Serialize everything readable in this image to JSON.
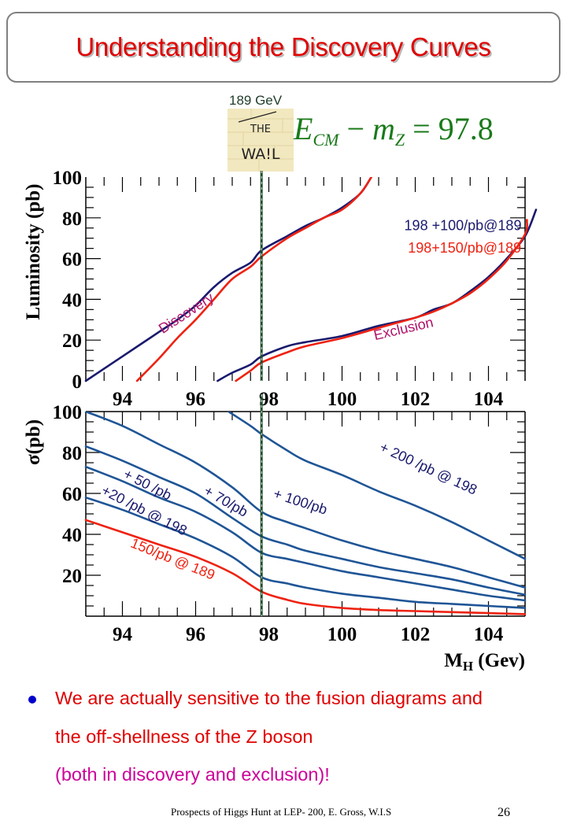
{
  "slide": {
    "title": "Understanding the Discovery Curves",
    "wall_label": "189 GeV",
    "wall_image_text": [
      "THE",
      "WA!L"
    ],
    "formula": {
      "E": "E",
      "E_sub": "CM",
      "minus": " − ",
      "m": "m",
      "m_sub": "Z",
      "rhs": " = 97.8"
    },
    "bullets": [
      {
        "lines": [
          "We are actually sensitive to the fusion diagrams and",
          "the off-shellness of the Z boson"
        ]
      },
      {
        "lines": [
          "(both in discovery and exclusion)!"
        ]
      }
    ],
    "footer": "Prospects of Higgs Hunt at LEP-   200, E. Gross, W.I.S",
    "page_number": "26"
  },
  "colors": {
    "title": "#e00000",
    "navy": "#1a1a6e",
    "red": "#ee2211",
    "steel_blue": "#1f5596",
    "magenta_label": "#b0106a",
    "green_line": "#1f4d2a",
    "bullet_red": "#e00000",
    "bullet_magenta": "#cc0099"
  },
  "chart_data": [
    {
      "type": "line",
      "title": "",
      "xlabel": "",
      "ylabel": "Luminosity (pb)",
      "xlim": [
        93,
        105
      ],
      "ylim": [
        0,
        100
      ],
      "xticks": [
        94,
        96,
        98,
        100,
        102,
        104
      ],
      "yticks": [
        0,
        20,
        40,
        60,
        80,
        100
      ],
      "vertical_line_x": 97.8,
      "annotations": [
        {
          "text": "Discovery",
          "x": 95.1,
          "y": 23,
          "color": "magenta_label",
          "rotation_deg": -33
        },
        {
          "text": "Exclusion",
          "x": 100.9,
          "y": 20,
          "color": "magenta_label",
          "rotation_deg": -13
        },
        {
          "text": "198 +100/pb@189",
          "x": 101.7,
          "y": 74,
          "color": "navy"
        },
        {
          "text": "198+150/pb@189",
          "x": 101.8,
          "y": 63,
          "color": "red"
        }
      ],
      "series": [
        {
          "name": "Discovery 198 +100/pb@189",
          "color": "navy",
          "x": [
            93.0,
            93.5,
            94.0,
            94.5,
            95.0,
            95.5,
            96.0,
            96.5,
            97.0,
            97.5,
            97.8,
            98.5,
            99.0,
            99.5,
            100.0,
            100.5,
            100.8
          ],
          "y": [
            0,
            6,
            12,
            18,
            24,
            30,
            37,
            46,
            53,
            58,
            64,
            71,
            76,
            80,
            85,
            92,
            100
          ]
        },
        {
          "name": "Discovery 198+150/pb@189",
          "color": "red",
          "x": [
            94.4,
            95.0,
            95.5,
            96.0,
            96.5,
            97.0,
            97.5,
            97.8,
            98.5,
            99.0,
            99.5,
            100.0,
            100.5,
            100.8
          ],
          "y": [
            0,
            11,
            21,
            30,
            40,
            50,
            56,
            61,
            70,
            75,
            80,
            84,
            92,
            100
          ]
        },
        {
          "name": "Exclusion 198 +100/pb@189",
          "color": "navy",
          "x": [
            96.6,
            97.0,
            97.5,
            97.8,
            98.5,
            99.0,
            100.0,
            101.0,
            102.0,
            102.5,
            103.0,
            103.5,
            104.0,
            104.5,
            105.0,
            105.3
          ],
          "y": [
            0,
            4,
            8,
            12,
            17,
            19,
            22,
            27,
            31,
            35,
            38,
            44,
            51,
            60,
            71,
            84
          ]
        },
        {
          "name": "Exclusion 198+150/pb@189",
          "color": "red",
          "x": [
            97.1,
            97.5,
            97.8,
            98.5,
            99.0,
            100.0,
            101.0,
            102.0,
            102.5,
            103.0,
            103.5,
            104.0,
            104.5,
            105.0,
            105.05
          ],
          "y": [
            0,
            5,
            9,
            14,
            17,
            21,
            26,
            31,
            34,
            38,
            43,
            50,
            59,
            72,
            79
          ]
        }
      ]
    },
    {
      "type": "line",
      "title": "",
      "xlabel": "M_H (Gev)",
      "ylabel": "σ(pb)",
      "xlim": [
        93,
        105
      ],
      "ylim": [
        0,
        100
      ],
      "xticks": [
        94,
        96,
        98,
        100,
        102,
        104
      ],
      "yticks": [
        20,
        40,
        60,
        80,
        100
      ],
      "vertical_line_x": 97.8,
      "annotations": [
        {
          "text": "+ 200 /pb @ 198",
          "x": 101.0,
          "y": 81,
          "color": "navy",
          "rotation_deg": 25
        },
        {
          "text": "+  100/pb",
          "x": 98.1,
          "y": 58,
          "color": "navy",
          "rotation_deg": 18
        },
        {
          "text": "+  70/pb",
          "x": 96.2,
          "y": 60,
          "color": "navy",
          "rotation_deg": 30
        },
        {
          "text": "+ 50 /pb",
          "x": 94.0,
          "y": 68,
          "color": "navy",
          "rotation_deg": 27
        },
        {
          "text": "+20 /pb @ 198",
          "x": 93.4,
          "y": 60,
          "color": "navy",
          "rotation_deg": 27
        },
        {
          "text": "150/pb @ 189",
          "x": 94.2,
          "y": 34,
          "color": "red",
          "rotation_deg": 22
        }
      ],
      "series": [
        {
          "name": "+200 /pb @ 198",
          "color": "steel_blue",
          "x": [
            96.9,
            97.5,
            97.8,
            98.5,
            99.0,
            100.0,
            101.0,
            102.0,
            103.0,
            104.0,
            105.0
          ],
          "y": [
            100,
            93,
            89,
            81,
            76,
            69,
            61,
            54,
            46,
            37,
            28
          ]
        },
        {
          "name": "+100/pb",
          "color": "steel_blue",
          "x": [
            93.0,
            94.0,
            95.0,
            96.0,
            97.0,
            97.8,
            98.5,
            99.0,
            100.0,
            101.0,
            102.0,
            103.0,
            104.0,
            105.0
          ],
          "y": [
            100,
            93,
            84,
            75,
            63,
            51,
            46,
            43,
            37,
            32,
            28,
            24,
            19,
            14
          ]
        },
        {
          "name": "+70/pb",
          "color": "steel_blue",
          "x": [
            93.0,
            94.0,
            95.0,
            96.0,
            97.0,
            97.8,
            98.5,
            99.0,
            100.0,
            101.0,
            102.0,
            103.0,
            104.0,
            105.0
          ],
          "y": [
            83,
            76,
            68,
            60,
            48,
            39,
            35,
            32,
            28,
            24,
            21,
            18,
            14,
            10.5
          ]
        },
        {
          "name": "+50/pb",
          "color": "steel_blue",
          "x": [
            93.0,
            94.0,
            95.0,
            96.0,
            97.0,
            97.8,
            98.5,
            99.0,
            100.0,
            101.0,
            102.0,
            103.0,
            104.0,
            105.0
          ],
          "y": [
            73,
            66,
            58,
            51,
            41,
            31,
            28,
            26,
            22,
            19,
            16,
            13,
            10,
            7.7
          ]
        },
        {
          "name": "+20 /pb @ 198",
          "color": "steel_blue",
          "x": [
            93.0,
            94.0,
            95.0,
            96.0,
            97.0,
            97.8,
            98.5,
            99.0,
            100.0,
            101.0,
            102.0,
            103.0,
            104.0,
            105.0
          ],
          "y": [
            58,
            52,
            45,
            38,
            29,
            19,
            16,
            14,
            11,
            9,
            7,
            6,
            5,
            4
          ]
        },
        {
          "name": "150/pb @ 189",
          "color": "red",
          "x": [
            93.0,
            94.0,
            95.0,
            96.0,
            97.0,
            97.8,
            98.5,
            99.0,
            100.0,
            101.0,
            102.0,
            103.0,
            104.0,
            105.0
          ],
          "y": [
            47,
            41,
            35,
            29,
            21,
            12,
            8,
            6,
            4,
            3,
            2.5,
            2,
            1.5,
            1
          ]
        }
      ]
    }
  ]
}
